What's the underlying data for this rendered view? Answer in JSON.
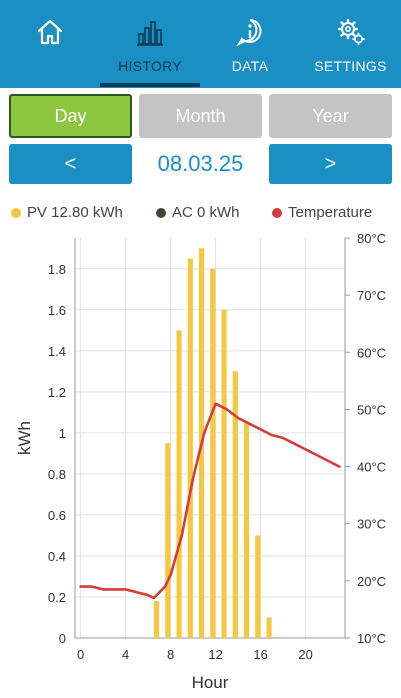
{
  "nav": {
    "items": [
      {
        "label": "",
        "icon": "home-icon"
      },
      {
        "label": "HISTORY",
        "icon": "bar-chart-icon"
      },
      {
        "label": "DATA",
        "icon": "info-icon"
      },
      {
        "label": "SETTINGS",
        "icon": "gear-icon"
      }
    ],
    "active": "HISTORY"
  },
  "period": {
    "day": "Day",
    "month": "Month",
    "year": "Year",
    "selected": "Day"
  },
  "date": {
    "prev": "<",
    "next": ">",
    "value": "08.03.25"
  },
  "legend": {
    "pv": "PV 12.80 kWh",
    "ac": "AC 0 kWh",
    "temp": "Temperature"
  },
  "colors": {
    "header": "#1a8fc4",
    "active_tab": "#0b3a55",
    "selected": "#8dc63f",
    "unselected": "#c4c4c4",
    "pv": "#f5c842",
    "ac": "#4a4232",
    "temp": "#d63b3b"
  },
  "chart_data": {
    "type": "bar",
    "xlabel": "Hour",
    "ylabel": "kWh",
    "xlim": [
      -0.5,
      23.5
    ],
    "ylim": [
      0,
      1.95
    ],
    "x_ticks": [
      0,
      4,
      8,
      12,
      16,
      20
    ],
    "y_ticks": [
      0,
      0.2,
      0.4,
      0.6,
      0.8,
      1,
      1.2,
      1.4,
      1.6,
      1.8
    ],
    "y_tick_labels": [
      "0",
      "0.2",
      "0.4",
      "0.6",
      "0.8",
      "1",
      "1.2",
      "1.4",
      "1.6",
      "1.8"
    ],
    "y2lim": [
      10,
      80
    ],
    "y2_ticks": [
      10,
      20,
      30,
      40,
      50,
      60,
      70,
      80
    ],
    "y2_tick_labels": [
      "10°C",
      "20°C",
      "30°C",
      "40°C",
      "50°C",
      "60°C",
      "70°C",
      "80°C"
    ],
    "grid": true,
    "series": [
      {
        "name": "PV",
        "type": "bar",
        "x": [
          6.75,
          7.75,
          8.75,
          9.75,
          10.75,
          11.75,
          12.75,
          13.75,
          14.75,
          15.75,
          16.75
        ],
        "values": [
          0.18,
          0.95,
          1.5,
          1.85,
          1.9,
          1.8,
          1.6,
          1.3,
          1.05,
          0.5,
          0.1
        ]
      },
      {
        "name": "Temperature",
        "type": "line",
        "axis": "right",
        "x": [
          0,
          1,
          2,
          3,
          4,
          5,
          6,
          6.5,
          7,
          7.5,
          8,
          9,
          10,
          11,
          12,
          13,
          14,
          15,
          16,
          17,
          18,
          19,
          20,
          21,
          22,
          23
        ],
        "values": [
          19,
          19,
          18.5,
          18.5,
          18.5,
          18,
          17.5,
          17,
          18,
          19,
          21,
          28,
          38,
          46,
          51,
          50,
          48.5,
          47.5,
          46.5,
          45.5,
          45,
          44,
          43,
          42,
          41,
          40
        ]
      }
    ]
  }
}
